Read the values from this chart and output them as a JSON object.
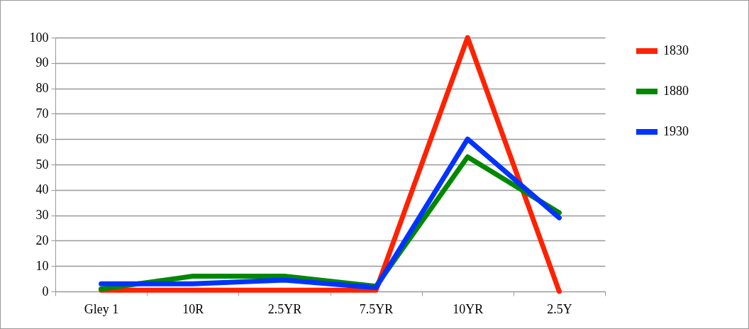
{
  "chart_data": {
    "type": "line",
    "categories": [
      "Gley 1",
      "10R",
      "2.5YR",
      "7.5YR",
      "10YR",
      "2.5Y"
    ],
    "series": [
      {
        "name": "1830",
        "color": "#ff2200",
        "values": [
          0.5,
          0.5,
          0.5,
          0.5,
          100,
          0
        ]
      },
      {
        "name": "1880",
        "color": "#008800",
        "values": [
          1,
          6,
          6,
          2,
          53,
          31
        ]
      },
      {
        "name": "1930",
        "color": "#0033ff",
        "values": [
          3,
          3,
          4.5,
          1.5,
          60,
          29
        ]
      }
    ],
    "ylim": [
      0,
      100
    ],
    "yticks": [
      0,
      10,
      20,
      30,
      40,
      50,
      60,
      70,
      80,
      90,
      100
    ],
    "grid": "y",
    "legend": "right",
    "marker": "none",
    "line_style": "solid"
  }
}
